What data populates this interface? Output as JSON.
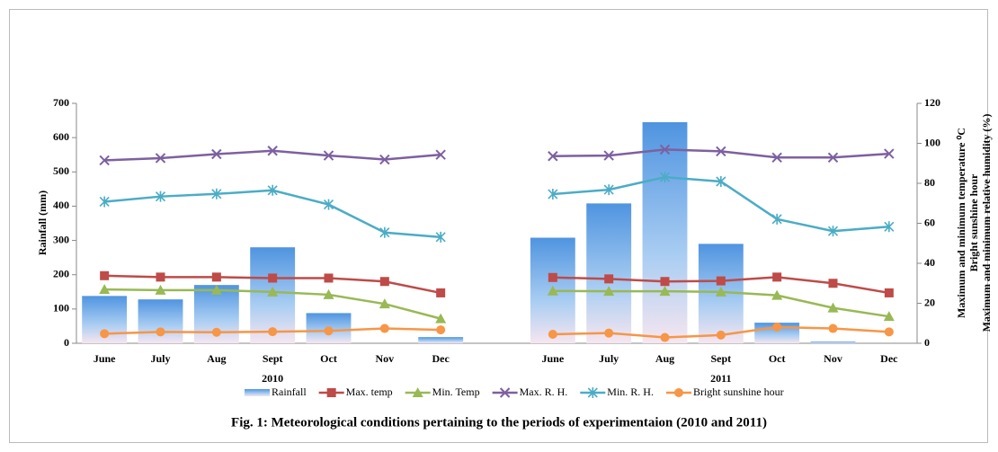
{
  "chart_data": {
    "type": "bar",
    "categories": [
      "June",
      "July",
      "Aug",
      "Sept",
      "Oct",
      "Nov",
      "Dec",
      null,
      "June",
      "July",
      "Aug",
      "Sept",
      "Oct",
      "Nov",
      "Dec"
    ],
    "x_groups": [
      "2010",
      "2011"
    ],
    "ylabel": "Rainfall (mm)",
    "y2label": [
      "Maximum and minimum temperature ⁰C",
      "Bright sunshine hour",
      "Maximum and minimum relative humidity (%)"
    ],
    "ylim": [
      0,
      700
    ],
    "yticks": [
      0,
      100,
      200,
      300,
      400,
      500,
      600,
      700
    ],
    "y2lim": [
      0,
      120
    ],
    "y2ticks": [
      0,
      20,
      40,
      60,
      80,
      100,
      120
    ],
    "series": [
      {
        "name": "Rainfall",
        "type": "bar",
        "color": "#5b9bd5",
        "values": [
          138,
          128,
          170,
          280,
          88,
          0,
          18,
          null,
          308,
          408,
          645,
          290,
          60,
          5,
          0
        ]
      },
      {
        "name": "Max. temp",
        "type": "line",
        "marker": "square",
        "axis": "y2",
        "color": "#be4b48",
        "values": [
          33.8,
          33.1,
          33.1,
          32.6,
          32.6,
          30.9,
          25.2,
          null,
          32.9,
          32.2,
          30.9,
          31.2,
          33.1,
          30.0,
          25.2
        ]
      },
      {
        "name": "Min. Temp",
        "type": "line",
        "marker": "triangle",
        "axis": "y2",
        "color": "#98b954",
        "values": [
          26.9,
          26.6,
          26.6,
          25.7,
          24.3,
          19.7,
          12.3,
          null,
          26.2,
          26.0,
          26.0,
          25.7,
          24.0,
          17.7,
          13.4
        ]
      },
      {
        "name": "Max. R. H.",
        "type": "line",
        "marker": "x",
        "axis": "y2",
        "color": "#7d60a0",
        "values": [
          91.5,
          92.6,
          94.6,
          96.3,
          93.9,
          91.9,
          94.3,
          null,
          93.6,
          93.9,
          96.9,
          96.0,
          92.9,
          92.9,
          94.8
        ]
      },
      {
        "name": "Min. R. H.",
        "type": "line",
        "marker": "asterisk",
        "axis": "y2",
        "color": "#4bacc6",
        "values": [
          70.8,
          73.4,
          74.7,
          76.5,
          69.4,
          55.4,
          53.1,
          null,
          74.6,
          76.8,
          83.1,
          80.9,
          62.1,
          56.1,
          58.3
        ]
      },
      {
        "name": "Bright sunshine hour",
        "type": "line",
        "marker": "circle",
        "axis": "y2",
        "color": "#f79646",
        "values": [
          4.8,
          5.7,
          5.5,
          5.8,
          6.2,
          7.4,
          6.7,
          null,
          4.5,
          5.1,
          2.9,
          4.1,
          8.1,
          7.4,
          5.7
        ]
      }
    ],
    "caption": "Fig. 1: Meteorological conditions pertaining to the periods of experimentaion (2010 and 2011)"
  }
}
